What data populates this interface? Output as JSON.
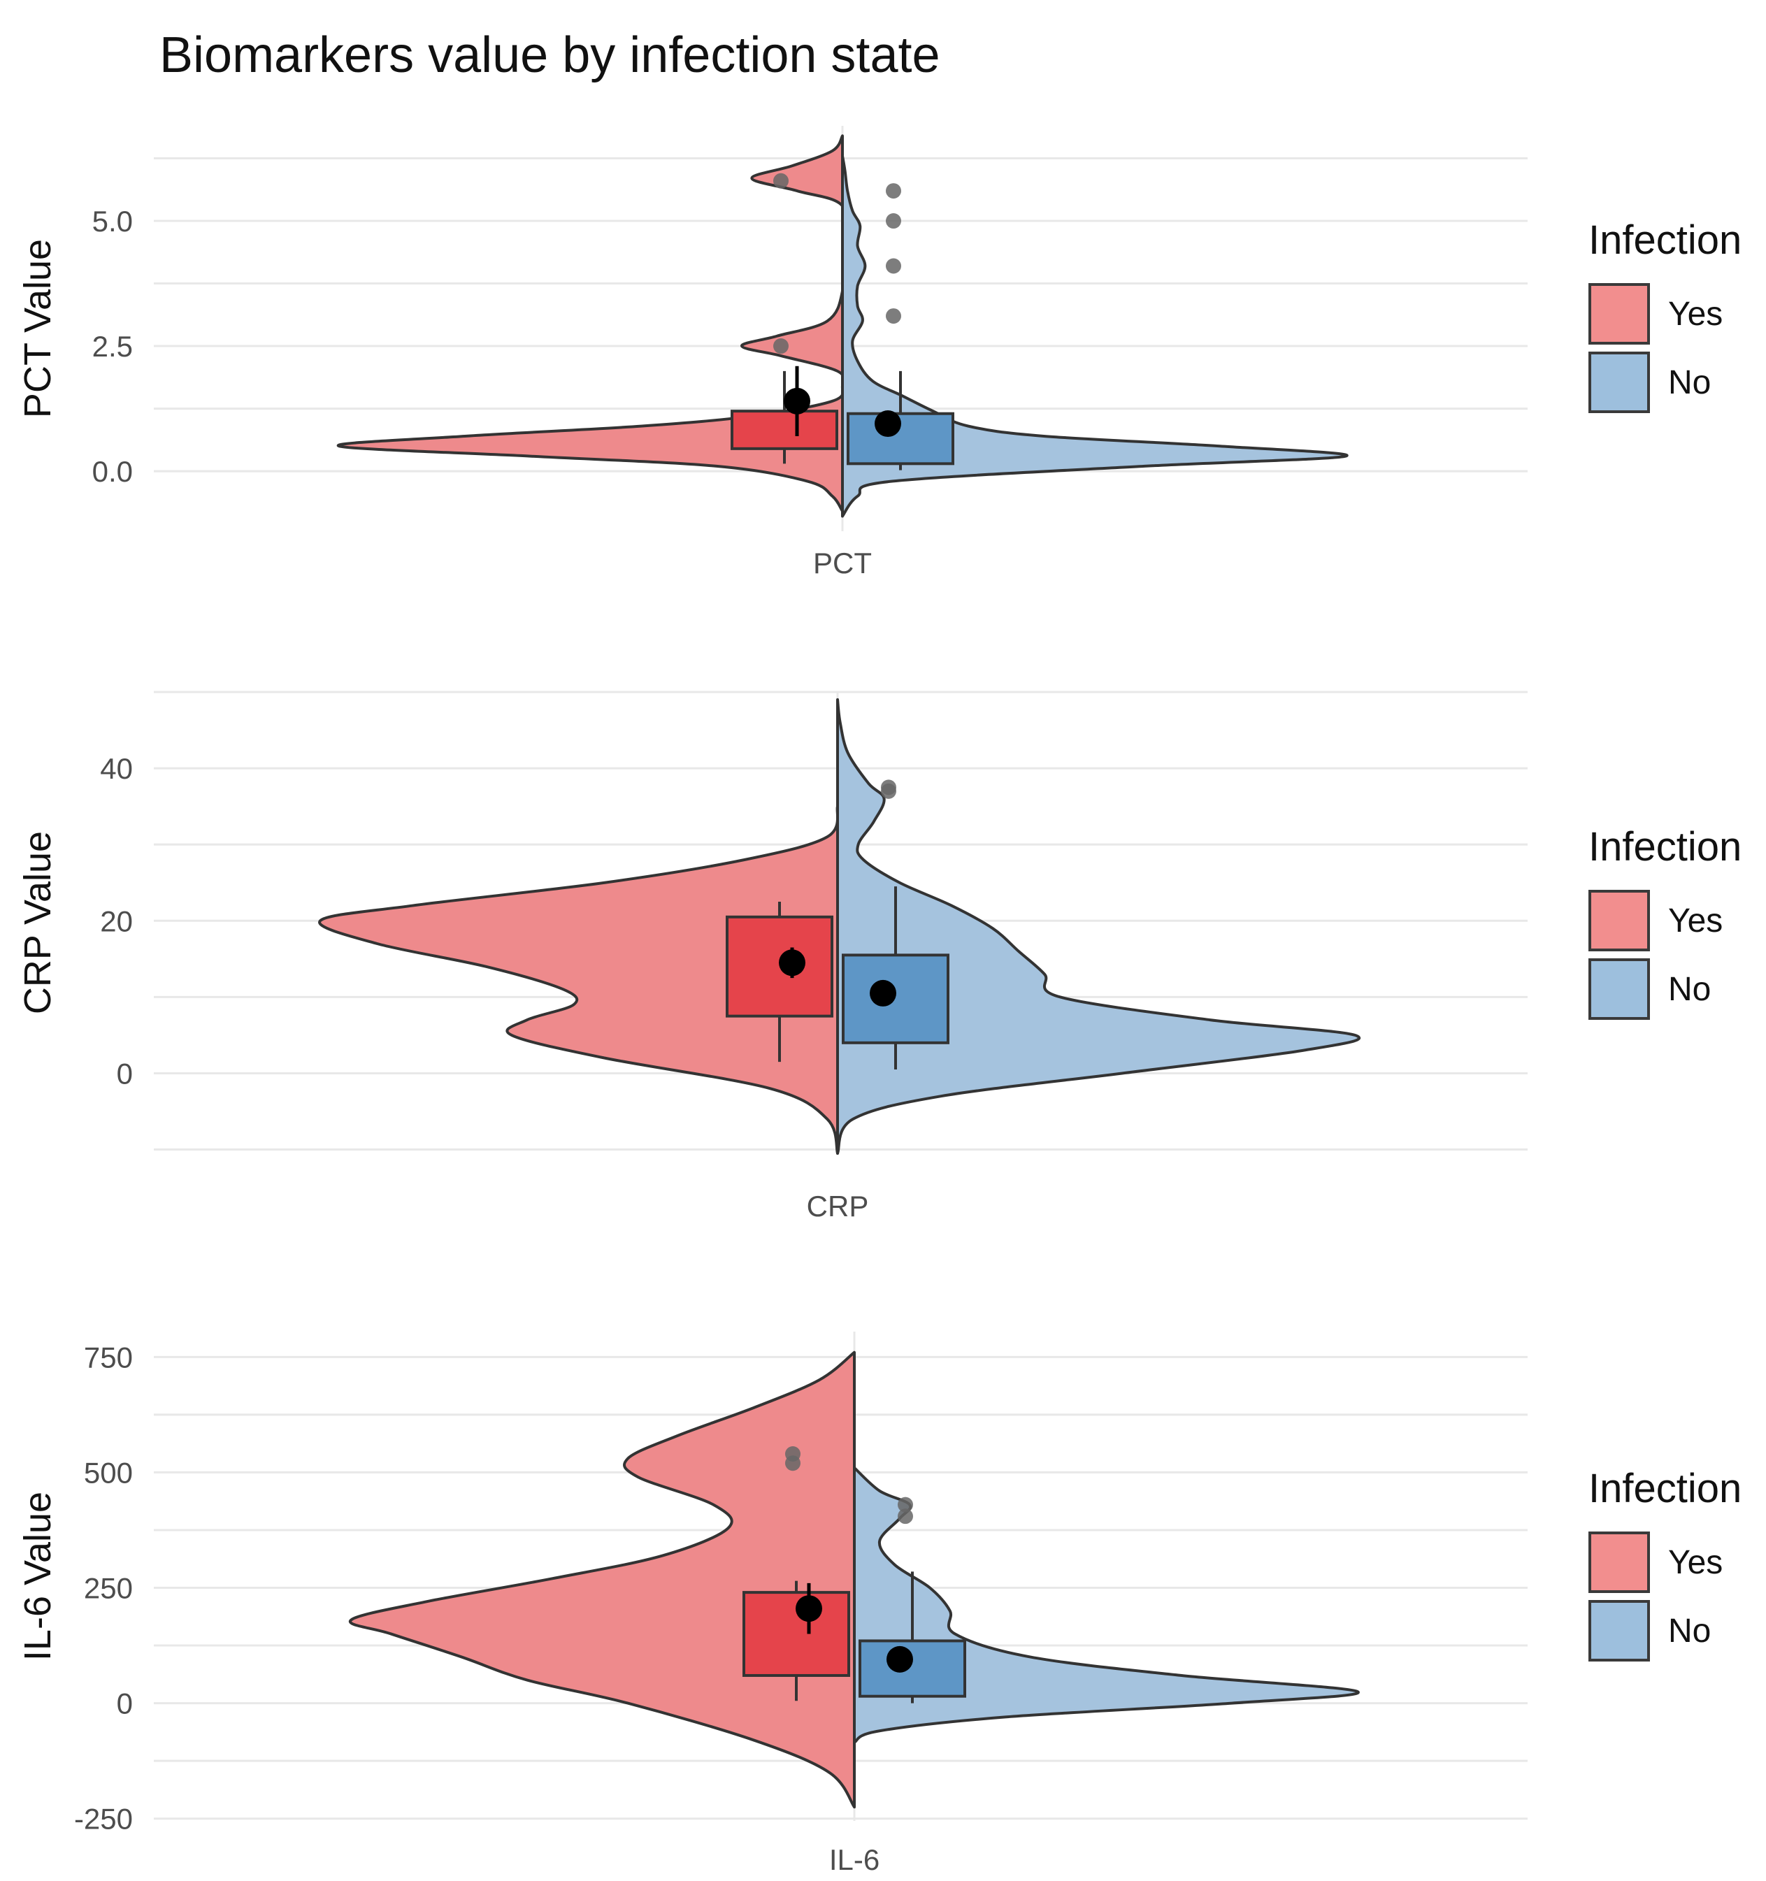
{
  "title": "Biomarkers value by infection state",
  "legend": {
    "title": "Infection",
    "items": [
      {
        "label": "Yes",
        "color": "#F28E8E"
      },
      {
        "label": "No",
        "color": "#9DBFDD"
      }
    ]
  },
  "colors": {
    "yes_violin": "#EE8A8C",
    "no_violin": "#A5C3DE",
    "yes_box": "#E5444B",
    "no_box": "#5E96C6",
    "outline": "#333333",
    "outlier": "#666666",
    "mean": "#000000",
    "grid": "#E8E8E8"
  },
  "chart_data": [
    {
      "type": "violin",
      "category": "PCT",
      "ylabel": "PCT Value",
      "ylim": [
        -1.2,
        6.9
      ],
      "yticks": [
        0.0,
        2.5,
        5.0
      ],
      "tick_labels": [
        "0.0",
        "2.5",
        "5.0"
      ],
      "series": [
        {
          "name": "Yes",
          "density": [
            [
              -0.8,
              0.0
            ],
            [
              -0.5,
              0.02
            ],
            [
              -0.2,
              0.07
            ],
            [
              0.1,
              0.25
            ],
            [
              0.3,
              0.62
            ],
            [
              0.5,
              1.0
            ],
            [
              0.7,
              0.75
            ],
            [
              0.9,
              0.4
            ],
            [
              1.1,
              0.18
            ],
            [
              1.4,
              0.02
            ],
            [
              1.7,
              0.0
            ],
            [
              2.0,
              0.01
            ],
            [
              2.3,
              0.12
            ],
            [
              2.5,
              0.2
            ],
            [
              2.7,
              0.13
            ],
            [
              3.0,
              0.03
            ],
            [
              3.6,
              0.0
            ],
            [
              4.5,
              0.0
            ],
            [
              5.3,
              0.0
            ],
            [
              5.6,
              0.09
            ],
            [
              5.85,
              0.18
            ],
            [
              6.1,
              0.1
            ],
            [
              6.4,
              0.02
            ],
            [
              6.7,
              0.0
            ]
          ],
          "box": {
            "q1": 0.45,
            "median": 0.8,
            "q3": 1.2,
            "whisker_low": 0.15,
            "whisker_high": 2.0
          },
          "mean": 1.4,
          "mean_ci": [
            0.7,
            2.1
          ],
          "outliers": [
            2.5,
            5.8
          ]
        },
        {
          "name": "No",
          "density": [
            [
              -0.9,
              0.0
            ],
            [
              -0.5,
              0.03
            ],
            [
              -0.2,
              0.1
            ],
            [
              0.1,
              0.6
            ],
            [
              0.3,
              1.0
            ],
            [
              0.5,
              0.75
            ],
            [
              0.7,
              0.4
            ],
            [
              0.9,
              0.25
            ],
            [
              1.2,
              0.18
            ],
            [
              1.5,
              0.12
            ],
            [
              1.8,
              0.06
            ],
            [
              2.2,
              0.03
            ],
            [
              2.6,
              0.02
            ],
            [
              3.0,
              0.04
            ],
            [
              3.3,
              0.03
            ],
            [
              3.7,
              0.03
            ],
            [
              4.1,
              0.045
            ],
            [
              4.5,
              0.03
            ],
            [
              4.9,
              0.035
            ],
            [
              5.2,
              0.02
            ],
            [
              5.6,
              0.01
            ],
            [
              6.0,
              0.005
            ],
            [
              6.3,
              0.0
            ]
          ],
          "box": {
            "q1": 0.15,
            "median": 0.5,
            "q3": 1.15,
            "whisker_low": 0.02,
            "whisker_high": 2.0
          },
          "mean": 0.95,
          "mean_ci": [
            0.8,
            1.1
          ],
          "outliers": [
            3.1,
            4.1,
            5.0,
            5.6
          ]
        }
      ]
    },
    {
      "type": "violin",
      "category": "CRP",
      "ylabel": "CRP Value",
      "ylim": [
        -10.5,
        50
      ],
      "yticks": [
        0,
        20,
        40
      ],
      "tick_labels": [
        "0",
        "20",
        "40"
      ],
      "series": [
        {
          "name": "Yes",
          "density": [
            [
              -10.5,
              0.0
            ],
            [
              -6,
              0.02
            ],
            [
              -2,
              0.13
            ],
            [
              2,
              0.45
            ],
            [
              5,
              0.63
            ],
            [
              7,
              0.6
            ],
            [
              9,
              0.51
            ],
            [
              11,
              0.53
            ],
            [
              14,
              0.68
            ],
            [
              17,
              0.89
            ],
            [
              20,
              1.0
            ],
            [
              22,
              0.82
            ],
            [
              25,
              0.45
            ],
            [
              28,
              0.18
            ],
            [
              31,
              0.02
            ],
            [
              35,
              0.0
            ]
          ],
          "box": {
            "q1": 7.5,
            "median": 14.5,
            "q3": 20.5,
            "whisker_low": 1.5,
            "whisker_high": 22.5
          },
          "mean": 14.5,
          "mean_ci": [
            12.5,
            16.5
          ],
          "outliers": []
        },
        {
          "name": "No",
          "density": [
            [
              -10.5,
              0.0
            ],
            [
              -6,
              0.03
            ],
            [
              -3,
              0.2
            ],
            [
              0,
              0.55
            ],
            [
              3,
              0.9
            ],
            [
              5,
              1.0
            ],
            [
              7,
              0.72
            ],
            [
              10,
              0.43
            ],
            [
              13,
              0.4
            ],
            [
              16,
              0.35
            ],
            [
              19,
              0.3
            ],
            [
              22,
              0.22
            ],
            [
              25,
              0.12
            ],
            [
              28,
              0.05
            ],
            [
              30,
              0.04
            ],
            [
              33,
              0.07
            ],
            [
              36,
              0.09
            ],
            [
              38,
              0.06
            ],
            [
              42,
              0.02
            ],
            [
              46,
              0.005
            ],
            [
              49,
              0.0
            ]
          ],
          "box": {
            "q1": 4.0,
            "median": 10.5,
            "q3": 15.5,
            "whisker_low": 0.5,
            "whisker_high": 24.5
          },
          "mean": 10.5,
          "mean_ci": [
            9.5,
            11.5
          ],
          "outliers": [
            37.0,
            37.5
          ]
        }
      ]
    },
    {
      "type": "violin",
      "category": "IL-6",
      "ylabel": "IL-6 Value",
      "ylim": [
        -255,
        805
      ],
      "yticks": [
        -250,
        0,
        250,
        500,
        750
      ],
      "tick_labels": [
        "-250",
        "0",
        "250",
        "500",
        "750"
      ],
      "series": [
        {
          "name": "Yes",
          "density": [
            [
              -225,
              0.0
            ],
            [
              -150,
              0.05
            ],
            [
              -80,
              0.2
            ],
            [
              0,
              0.45
            ],
            [
              50,
              0.65
            ],
            [
              100,
              0.78
            ],
            [
              150,
              0.92
            ],
            [
              180,
              1.0
            ],
            [
              220,
              0.85
            ],
            [
              270,
              0.6
            ],
            [
              320,
              0.38
            ],
            [
              380,
              0.25
            ],
            [
              430,
              0.28
            ],
            [
              490,
              0.43
            ],
            [
              530,
              0.45
            ],
            [
              580,
              0.35
            ],
            [
              640,
              0.2
            ],
            [
              700,
              0.07
            ],
            [
              760,
              0.0
            ]
          ],
          "box": {
            "q1": 60,
            "median": 150,
            "q3": 240,
            "whisker_low": 5,
            "whisker_high": 265
          },
          "mean": 205,
          "mean_ci": [
            150,
            260
          ],
          "outliers": [
            520,
            540
          ]
        },
        {
          "name": "No",
          "density": [
            [
              -85,
              0.0
            ],
            [
              -60,
              0.05
            ],
            [
              -30,
              0.3
            ],
            [
              0,
              0.75
            ],
            [
              25,
              1.0
            ],
            [
              60,
              0.65
            ],
            [
              100,
              0.35
            ],
            [
              150,
              0.2
            ],
            [
              200,
              0.19
            ],
            [
              250,
              0.15
            ],
            [
              300,
              0.08
            ],
            [
              350,
              0.05
            ],
            [
              400,
              0.09
            ],
            [
              430,
              0.11
            ],
            [
              460,
              0.05
            ],
            [
              510,
              0.0
            ]
          ],
          "box": {
            "q1": 15,
            "median": 80,
            "q3": 135,
            "whisker_low": 0,
            "whisker_high": 285
          },
          "mean": 95,
          "mean_ci": [
            80,
            110
          ],
          "outliers": [
            405,
            430
          ]
        }
      ]
    }
  ]
}
